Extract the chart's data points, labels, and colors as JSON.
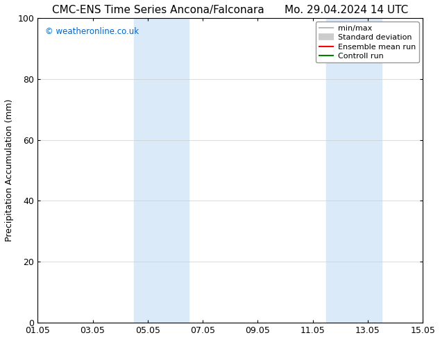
{
  "title_left": "CMC-ENS Time Series Ancona/Falconara",
  "title_right": "Mo. 29.04.2024 14 UTC",
  "ylabel": "Precipitation Accumulation (mm)",
  "watermark": "© weatheronline.co.uk",
  "watermark_color": "#0066cc",
  "xlim_start": 0,
  "xlim_end": 14,
  "ylim": [
    0,
    100
  ],
  "yticks": [
    0,
    20,
    40,
    60,
    80,
    100
  ],
  "xtick_labels": [
    "01.05",
    "03.05",
    "05.05",
    "07.05",
    "09.05",
    "11.05",
    "13.05",
    "15.05"
  ],
  "xtick_positions": [
    0,
    2,
    4,
    6,
    8,
    10,
    12,
    14
  ],
  "shaded_regions": [
    {
      "x_start": 3.5,
      "x_end": 5.5,
      "color": "#daeaf8"
    },
    {
      "x_start": 10.5,
      "x_end": 12.5,
      "color": "#daeaf8"
    }
  ],
  "legend_items": [
    {
      "label": "min/max",
      "color": "#aaaaaa",
      "lw": 1.2,
      "style": "solid"
    },
    {
      "label": "Standard deviation",
      "color": "#cccccc",
      "lw": 7,
      "style": "solid"
    },
    {
      "label": "Ensemble mean run",
      "color": "#ff0000",
      "lw": 1.5,
      "style": "solid"
    },
    {
      "label": "Controll run",
      "color": "#008000",
      "lw": 1.5,
      "style": "solid"
    }
  ],
  "background_color": "#ffffff",
  "grid_color": "#cccccc",
  "title_fontsize": 11,
  "axis_fontsize": 9,
  "tick_fontsize": 9,
  "legend_fontsize": 8
}
